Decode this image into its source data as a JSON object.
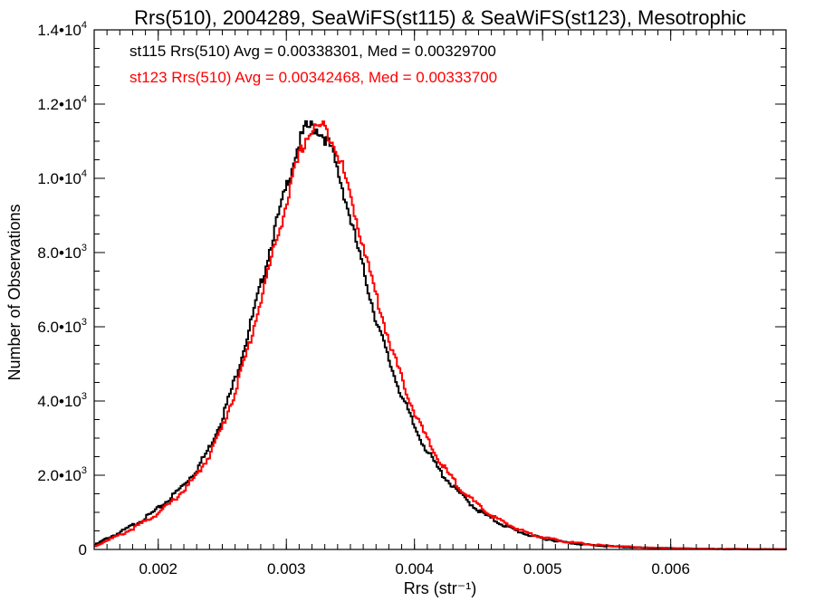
{
  "chart_data": {
    "type": "line",
    "style": "step-histogram",
    "title": "Rrs(510), 2004289, SeaWiFS(st115) & SeaWiFS(st123), Mesotrophic",
    "xlabel": "Rrs (str⁻¹)",
    "ylabel": "Number of Observations",
    "xlim": [
      0.0015,
      0.0069
    ],
    "ylim": [
      0,
      14000
    ],
    "grid": false,
    "x_ticks": [
      {
        "value": 0.002,
        "label": "0.002"
      },
      {
        "value": 0.003,
        "label": "0.003"
      },
      {
        "value": 0.004,
        "label": "0.004"
      },
      {
        "value": 0.005,
        "label": "0.005"
      },
      {
        "value": 0.006,
        "label": "0.006"
      }
    ],
    "y_ticks": [
      {
        "value": 0,
        "mant": "0",
        "exp": ""
      },
      {
        "value": 2000,
        "mant": "2.0•10",
        "exp": "3"
      },
      {
        "value": 4000,
        "mant": "4.0•10",
        "exp": "3"
      },
      {
        "value": 6000,
        "mant": "6.0•10",
        "exp": "3"
      },
      {
        "value": 8000,
        "mant": "8.0•10",
        "exp": "3"
      },
      {
        "value": 10000,
        "mant": "1.0•10",
        "exp": "4"
      },
      {
        "value": 12000,
        "mant": "1.2•10",
        "exp": "4"
      },
      {
        "value": 14000,
        "mant": "1.4•10",
        "exp": "4"
      }
    ],
    "annotations": [
      {
        "text": "st115 Rrs(510) Avg = 0.00338301, Med = 0.00329700",
        "color": "#000000"
      },
      {
        "text": "st123 Rrs(510) Avg = 0.00342468, Med = 0.00333700",
        "color": "#ff0000"
      }
    ],
    "series": [
      {
        "color": "#000000",
        "x": [
          0.0015,
          0.0016,
          0.0017,
          0.0018,
          0.0019,
          0.002,
          0.0021,
          0.0022,
          0.0023,
          0.0024,
          0.0025,
          0.0026,
          0.0027,
          0.0028,
          0.0029,
          0.003,
          0.00305,
          0.0031,
          0.00315,
          0.0032,
          0.00325,
          0.0033,
          0.00335,
          0.0034,
          0.00345,
          0.0035,
          0.0036,
          0.0037,
          0.0038,
          0.0039,
          0.004,
          0.0041,
          0.0042,
          0.0043,
          0.0044,
          0.0045,
          0.0046,
          0.0047,
          0.0048,
          0.0049,
          0.005,
          0.0052,
          0.0054,
          0.0056,
          0.0058,
          0.006,
          0.0062,
          0.0064,
          0.0066,
          0.0069
        ],
        "values": [
          100,
          300,
          450,
          650,
          850,
          1100,
          1400,
          1750,
          2150,
          2750,
          3550,
          4600,
          5800,
          7100,
          8500,
          9750,
          10400,
          10950,
          11350,
          11400,
          11300,
          11100,
          10800,
          10200,
          9600,
          8900,
          7550,
          6200,
          5100,
          4150,
          3300,
          2650,
          2100,
          1700,
          1350,
          1050,
          830,
          650,
          500,
          380,
          300,
          180,
          110,
          70,
          45,
          30,
          20,
          12,
          8,
          5
        ]
      },
      {
        "color": "#ff0000",
        "x": [
          0.0015,
          0.0016,
          0.0017,
          0.0018,
          0.0019,
          0.002,
          0.0021,
          0.0022,
          0.0023,
          0.0024,
          0.0025,
          0.0026,
          0.0027,
          0.0028,
          0.0029,
          0.003,
          0.00305,
          0.0031,
          0.00315,
          0.0032,
          0.00325,
          0.0033,
          0.00335,
          0.0034,
          0.00345,
          0.0035,
          0.0036,
          0.0037,
          0.0038,
          0.0039,
          0.004,
          0.0041,
          0.0042,
          0.0043,
          0.0044,
          0.0045,
          0.0046,
          0.0047,
          0.0048,
          0.0049,
          0.005,
          0.0052,
          0.0054,
          0.0056,
          0.0058,
          0.006,
          0.0062,
          0.0064,
          0.0066,
          0.0069
        ],
        "values": [
          70,
          250,
          380,
          560,
          760,
          980,
          1260,
          1600,
          1990,
          2550,
          3300,
          4250,
          5400,
          6700,
          8050,
          9300,
          10000,
          10600,
          11050,
          11300,
          11400,
          11350,
          11100,
          10700,
          10150,
          9500,
          8200,
          6850,
          5650,
          4600,
          3700,
          2950,
          2350,
          1880,
          1500,
          1170,
          920,
          720,
          560,
          430,
          330,
          200,
          125,
          80,
          50,
          32,
          22,
          14,
          9,
          6
        ]
      }
    ]
  }
}
